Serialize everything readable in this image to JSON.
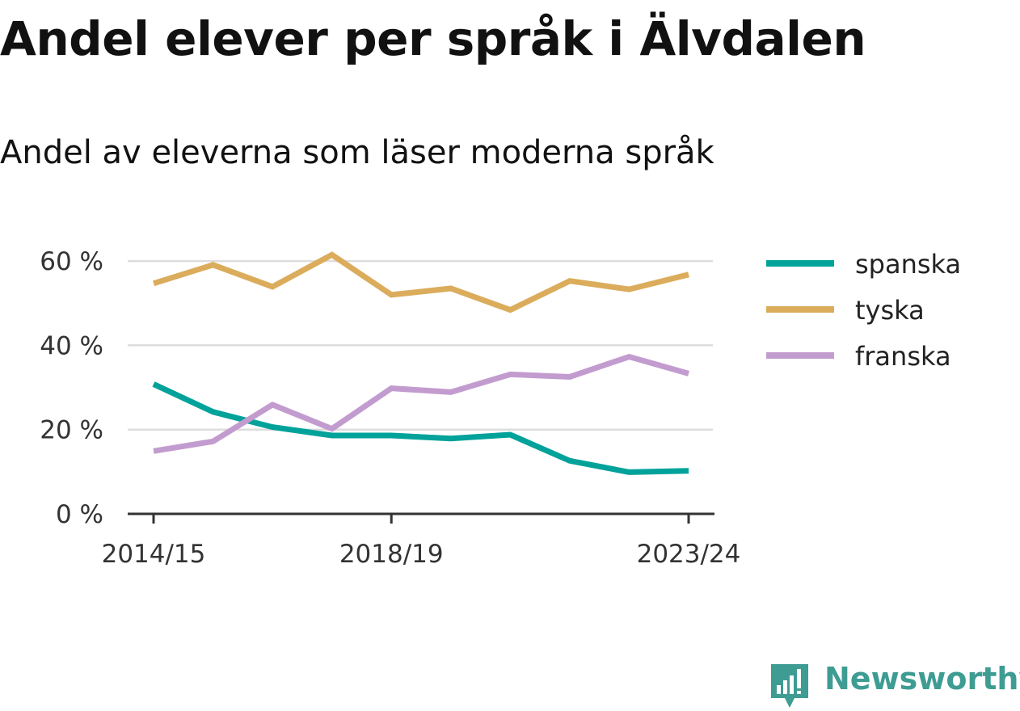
{
  "header": {
    "title": "Andel elever per språk i Älvdalen",
    "subtitle": "Andel av eleverna som läser moderna språk"
  },
  "brand": {
    "name": "Newsworthy",
    "icon": "newsworthy-logo-icon",
    "color": "#3e9c93"
  },
  "colors": {
    "grid": "#dddddd",
    "axis": "#333333"
  },
  "chart_data": {
    "type": "line",
    "x": [
      "2014/15",
      "2015/16",
      "2016/17",
      "2017/18",
      "2018/19",
      "2019/20",
      "2020/21",
      "2021/22",
      "2022/23",
      "2023/24"
    ],
    "x_tick_labels": [
      "2014/15",
      "2018/19",
      "2023/24"
    ],
    "y_ticks": [
      0,
      20,
      40,
      60
    ],
    "y_tick_labels": [
      "0 %",
      "20 %",
      "40 %",
      "60 %"
    ],
    "ylim": [
      0,
      70
    ],
    "grid": true,
    "legend_position": "right",
    "series": [
      {
        "name": "spanska",
        "color": "#00a29a",
        "values": [
          30.8,
          24.2,
          20.6,
          18.6,
          18.6,
          17.9,
          18.8,
          12.6,
          9.9,
          10.2
        ]
      },
      {
        "name": "tyska",
        "color": "#dbac5b",
        "values": [
          54.7,
          59.1,
          53.9,
          61.5,
          52.0,
          53.5,
          48.4,
          55.3,
          53.3,
          56.8
        ]
      },
      {
        "name": "franska",
        "color": "#c39ccf",
        "values": [
          14.9,
          17.2,
          25.9,
          20.2,
          29.8,
          28.9,
          33.1,
          32.5,
          37.3,
          33.3
        ]
      }
    ]
  }
}
